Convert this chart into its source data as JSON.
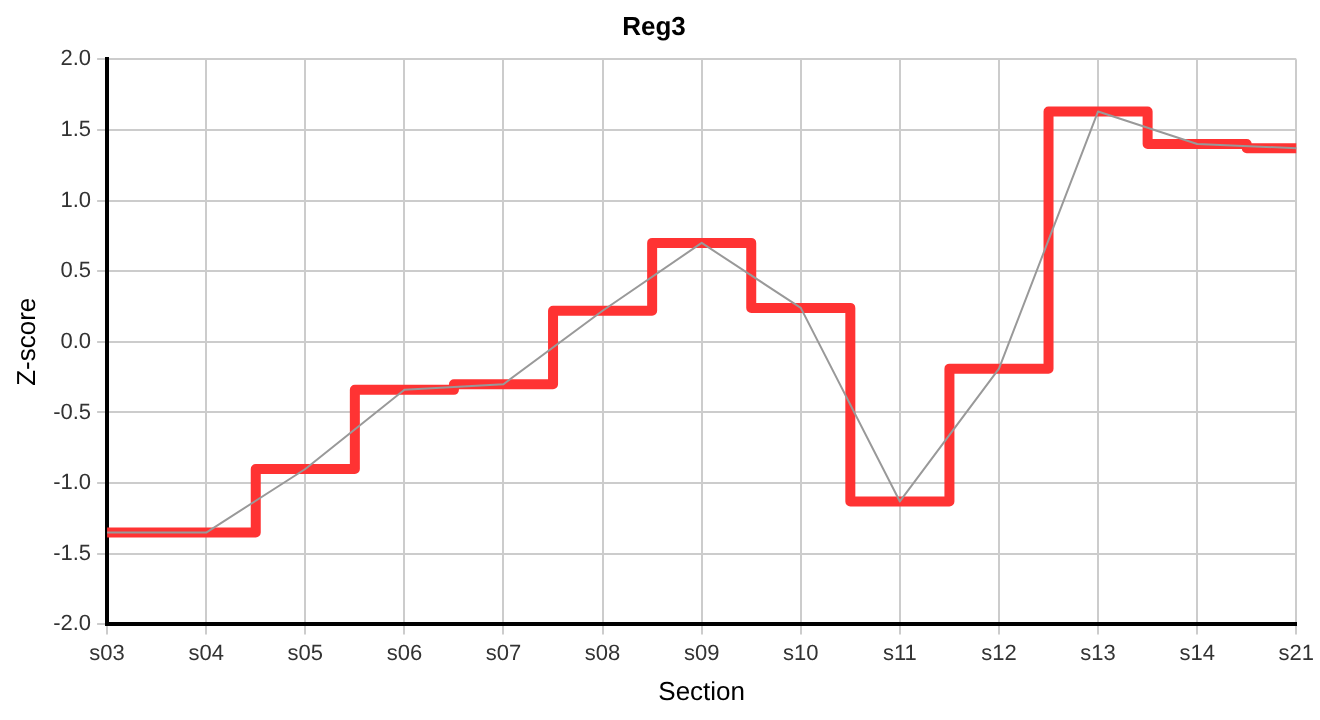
{
  "chart_data": {
    "type": "step",
    "title": "Reg3",
    "xlabel": "Section",
    "ylabel": "Z-score",
    "categories": [
      "s03",
      "s04",
      "s05",
      "s06",
      "s07",
      "s08",
      "s09",
      "s10",
      "s11",
      "s12",
      "s13",
      "s14",
      "s21"
    ],
    "series": [
      {
        "color": "#ff3333",
        "values": [
          -1.35,
          -1.35,
          -0.9,
          -0.34,
          -0.3,
          0.22,
          0.7,
          0.24,
          -1.13,
          -0.19,
          1.63,
          1.4,
          1.37
        ]
      },
      {
        "type": "line",
        "color": "#999999",
        "values": [
          -1.35,
          -1.35,
          -0.9,
          -0.34,
          -0.3,
          0.22,
          0.7,
          0.24,
          -1.13,
          -0.19,
          1.63,
          1.4,
          1.37
        ]
      }
    ],
    "ylim": [
      -2,
      2
    ],
    "yticks": [
      {
        "value": -2,
        "label": "-2.0"
      },
      {
        "value": -1.5,
        "label": "-1.5"
      },
      {
        "value": -1,
        "label": "-1.0"
      },
      {
        "value": -0.5,
        "label": "-0.5"
      },
      {
        "value": 0,
        "label": "0.0"
      },
      {
        "value": 0.5,
        "label": "0.5"
      },
      {
        "value": 1,
        "label": "1.0"
      },
      {
        "value": 1.5,
        "label": "1.5"
      },
      {
        "value": 2,
        "label": "2.0"
      }
    ],
    "grid": true,
    "legend": false,
    "marker": "none",
    "line_style": "solid"
  }
}
